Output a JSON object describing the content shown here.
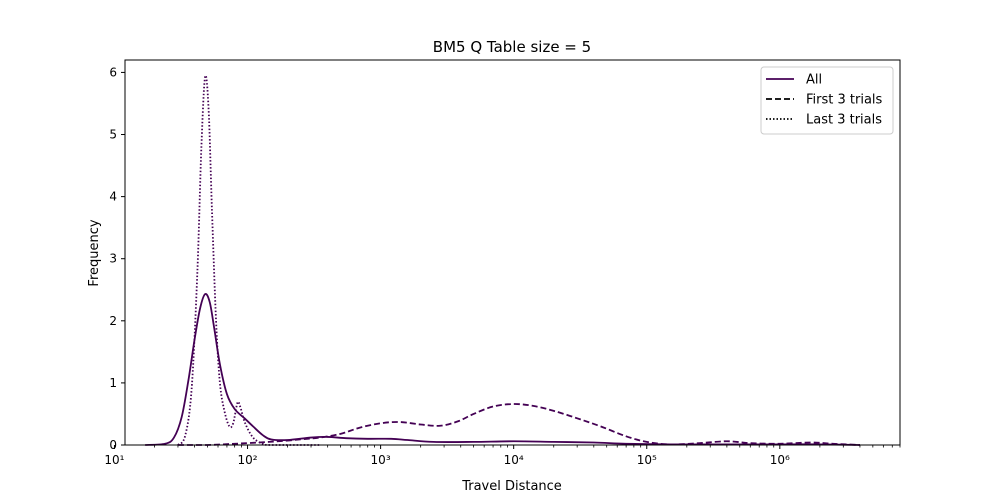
{
  "chart_data": {
    "type": "line",
    "title": "BM5 Q Table size = 5",
    "xlabel": "Travel Distance",
    "ylabel": "Frequency",
    "xscale": "log",
    "xlim": [
      12,
      8000000
    ],
    "ylim": [
      0,
      6.2
    ],
    "grid": false,
    "legend_position": "top-right",
    "x_ticks": [
      {
        "value": 10,
        "label": "10¹"
      },
      {
        "value": 100,
        "label": "10²"
      },
      {
        "value": 1000,
        "label": "10³"
      },
      {
        "value": 10000,
        "label": "10⁴"
      },
      {
        "value": 100000,
        "label": "10⁵"
      },
      {
        "value": 1000000,
        "label": "10⁶"
      }
    ],
    "y_ticks": [
      {
        "value": 0,
        "label": "0"
      },
      {
        "value": 1,
        "label": "1"
      },
      {
        "value": 2,
        "label": "2"
      },
      {
        "value": 3,
        "label": "3"
      },
      {
        "value": 4,
        "label": "4"
      },
      {
        "value": 5,
        "label": "5"
      },
      {
        "value": 6,
        "label": "6"
      }
    ],
    "series": [
      {
        "name": "All",
        "style": "solid",
        "color": "#440154",
        "points": [
          [
            17,
            0.0
          ],
          [
            24,
            0.02
          ],
          [
            28,
            0.12
          ],
          [
            32,
            0.45
          ],
          [
            36,
            1.05
          ],
          [
            40,
            1.7
          ],
          [
            44,
            2.2
          ],
          [
            48,
            2.43
          ],
          [
            52,
            2.3
          ],
          [
            56,
            1.9
          ],
          [
            62,
            1.3
          ],
          [
            70,
            0.82
          ],
          [
            80,
            0.58
          ],
          [
            95,
            0.43
          ],
          [
            110,
            0.3
          ],
          [
            130,
            0.16
          ],
          [
            150,
            0.09
          ],
          [
            200,
            0.08
          ],
          [
            300,
            0.12
          ],
          [
            400,
            0.13
          ],
          [
            550,
            0.11
          ],
          [
            800,
            0.1
          ],
          [
            1200,
            0.1
          ],
          [
            1600,
            0.08
          ],
          [
            2500,
            0.05
          ],
          [
            5000,
            0.05
          ],
          [
            10000,
            0.06
          ],
          [
            20000,
            0.05
          ],
          [
            40000,
            0.04
          ],
          [
            70000,
            0.02
          ],
          [
            150000,
            0.01
          ],
          [
            300000,
            0.01
          ],
          [
            1000000,
            0.01
          ],
          [
            2000000,
            0.01
          ],
          [
            4000000,
            0.0
          ]
        ]
      },
      {
        "name": "First 3 trials",
        "style": "dashed",
        "color": "#440154",
        "points": [
          [
            30,
            0.0
          ],
          [
            50,
            0.0
          ],
          [
            80,
            0.02
          ],
          [
            120,
            0.04
          ],
          [
            170,
            0.06
          ],
          [
            250,
            0.09
          ],
          [
            350,
            0.12
          ],
          [
            500,
            0.18
          ],
          [
            700,
            0.28
          ],
          [
            1000,
            0.35
          ],
          [
            1400,
            0.37
          ],
          [
            2000,
            0.33
          ],
          [
            2800,
            0.31
          ],
          [
            3800,
            0.38
          ],
          [
            5000,
            0.5
          ],
          [
            7000,
            0.62
          ],
          [
            10000,
            0.66
          ],
          [
            14000,
            0.63
          ],
          [
            20000,
            0.55
          ],
          [
            30000,
            0.43
          ],
          [
            45000,
            0.3
          ],
          [
            70000,
            0.14
          ],
          [
            100000,
            0.05
          ],
          [
            150000,
            0.01
          ],
          [
            250000,
            0.03
          ],
          [
            400000,
            0.06
          ],
          [
            600000,
            0.03
          ],
          [
            1000000,
            0.02
          ],
          [
            1700000,
            0.04
          ],
          [
            2500000,
            0.02
          ],
          [
            4000000,
            0.0
          ]
        ]
      },
      {
        "name": "Last 3 trials",
        "style": "dotted",
        "color": "#440154",
        "points": [
          [
            30,
            0.0
          ],
          [
            34,
            0.15
          ],
          [
            38,
            0.9
          ],
          [
            42,
            2.8
          ],
          [
            45,
            4.8
          ],
          [
            48,
            5.93
          ],
          [
            51,
            5.4
          ],
          [
            54,
            3.8
          ],
          [
            58,
            2.0
          ],
          [
            62,
            1.0
          ],
          [
            67,
            0.55
          ],
          [
            73,
            0.3
          ],
          [
            78,
            0.35
          ],
          [
            84,
            0.68
          ],
          [
            88,
            0.62
          ],
          [
            96,
            0.35
          ],
          [
            110,
            0.12
          ],
          [
            130,
            0.02
          ],
          [
            150,
            0.0
          ],
          [
            350,
            0.0
          ]
        ]
      }
    ]
  }
}
